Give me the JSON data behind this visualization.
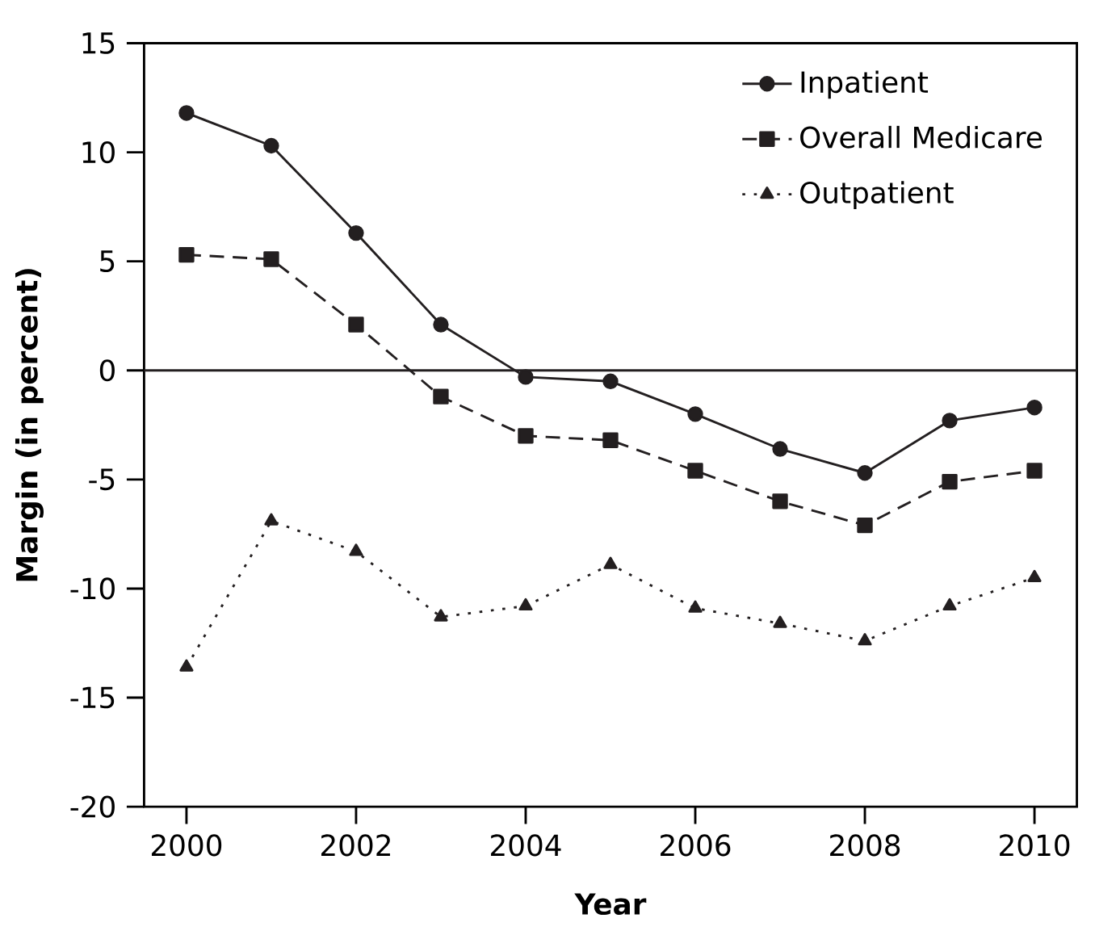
{
  "chart_data": {
    "type": "line",
    "xlabel": "Year",
    "ylabel": "Margin (in percent)",
    "x": [
      2000,
      2001,
      2002,
      2003,
      2004,
      2005,
      2006,
      2007,
      2008,
      2009,
      2010
    ],
    "series": [
      {
        "name": "Inpatient",
        "color": "#231f20",
        "marker": "circle",
        "line_style": "solid",
        "values": [
          11.8,
          10.3,
          6.3,
          2.1,
          -0.3,
          -0.5,
          -2.0,
          -3.6,
          -4.7,
          -2.3,
          -1.7
        ]
      },
      {
        "name": "Overall Medicare",
        "color": "#231f20",
        "marker": "square",
        "line_style": "dashed",
        "values": [
          5.3,
          5.1,
          2.1,
          -1.2,
          -3.0,
          -3.2,
          -4.6,
          -6.0,
          -7.1,
          -5.1,
          -4.6
        ]
      },
      {
        "name": "Outpatient",
        "color": "#231f20",
        "marker": "triangle",
        "line_style": "dotted",
        "values": [
          -13.6,
          -6.9,
          -8.3,
          -11.3,
          -10.8,
          -8.9,
          -10.9,
          -11.6,
          -12.4,
          -10.8,
          -9.5
        ]
      }
    ],
    "xlim": [
      1999.5,
      2010.5
    ],
    "xticks": [
      2000,
      2002,
      2004,
      2006,
      2008,
      2010
    ],
    "ylim": [
      -20,
      15
    ],
    "yticks": [
      -20,
      -15,
      -10,
      -5,
      0,
      5,
      10,
      15
    ],
    "ref_lines": [
      {
        "axis": "y",
        "value": 0,
        "color": "#231f20"
      }
    ],
    "legend": "top right",
    "grid": false
  }
}
